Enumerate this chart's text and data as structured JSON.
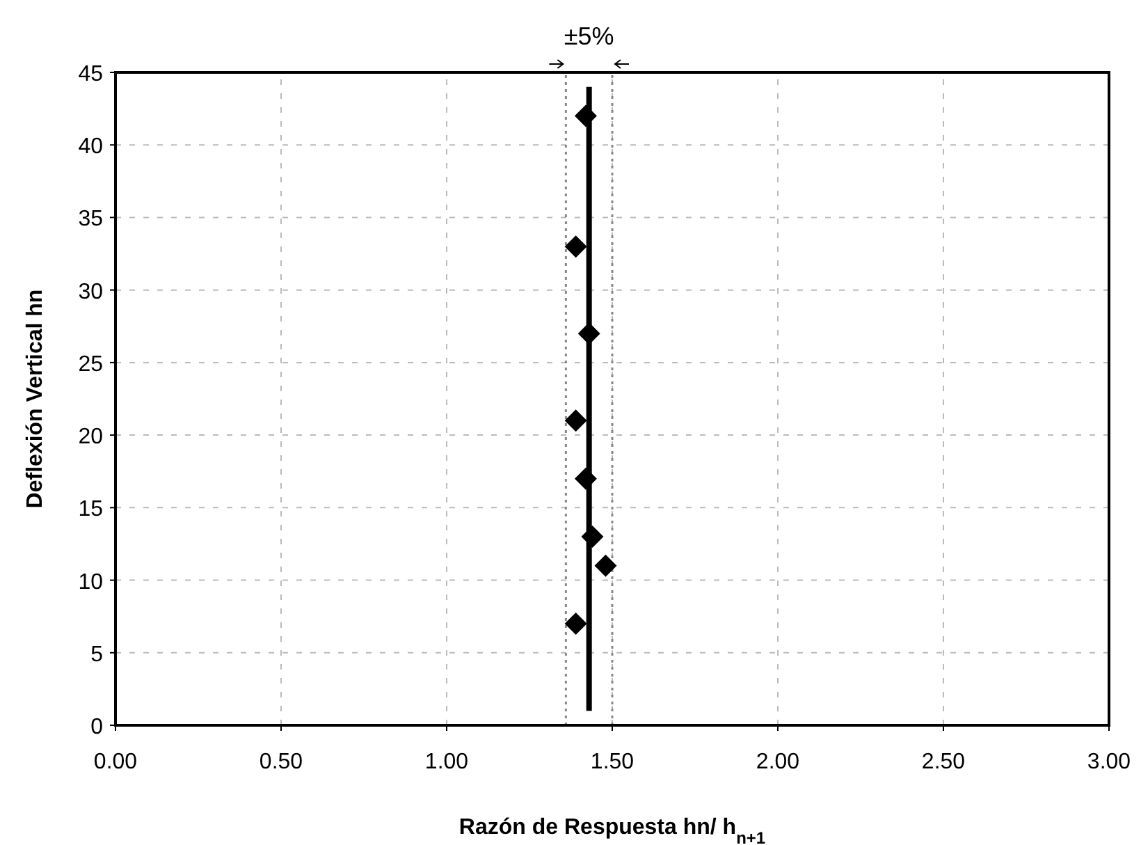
{
  "chart_data": {
    "type": "scatter",
    "xlabel": "Razón de Respuesta  hn/ h$_{n+1}$",
    "ylabel": "Deflexión Vertical  hn",
    "xlim": [
      0,
      3
    ],
    "ylim": [
      0,
      45
    ],
    "xticks": [
      {
        "value": 0,
        "label": "0.00"
      },
      {
        "value": 0.5,
        "label": "0.50"
      },
      {
        "value": 1,
        "label": "1.00"
      },
      {
        "value": 1.5,
        "label": "1.50"
      },
      {
        "value": 2,
        "label": "2.00"
      },
      {
        "value": 2.5,
        "label": "2.50"
      },
      {
        "value": 3,
        "label": "3.00"
      }
    ],
    "yticks": [
      0,
      5,
      10,
      15,
      20,
      25,
      30,
      35,
      40,
      45
    ],
    "grid": true,
    "series": [
      {
        "type": "line",
        "color": "#000000",
        "x": [
          1.43,
          1.43
        ],
        "values": [
          1,
          44
        ],
        "marker": "none",
        "line_style": "solid"
      },
      {
        "color": "#000000",
        "x": [
          1.42,
          1.39,
          1.43,
          1.39,
          1.42,
          1.44,
          1.48,
          1.39
        ],
        "values": [
          42,
          33,
          27,
          21,
          17,
          13,
          11,
          7
        ],
        "marker": "diamond"
      }
    ],
    "ref_lines": [
      {
        "axis": "x",
        "value": 1.36,
        "color": "#888888",
        "line_style": "dotted"
      },
      {
        "axis": "x",
        "value": 1.5,
        "color": "#888888",
        "line_style": "dotted"
      }
    ],
    "annotations": [
      "±5%"
    ]
  }
}
